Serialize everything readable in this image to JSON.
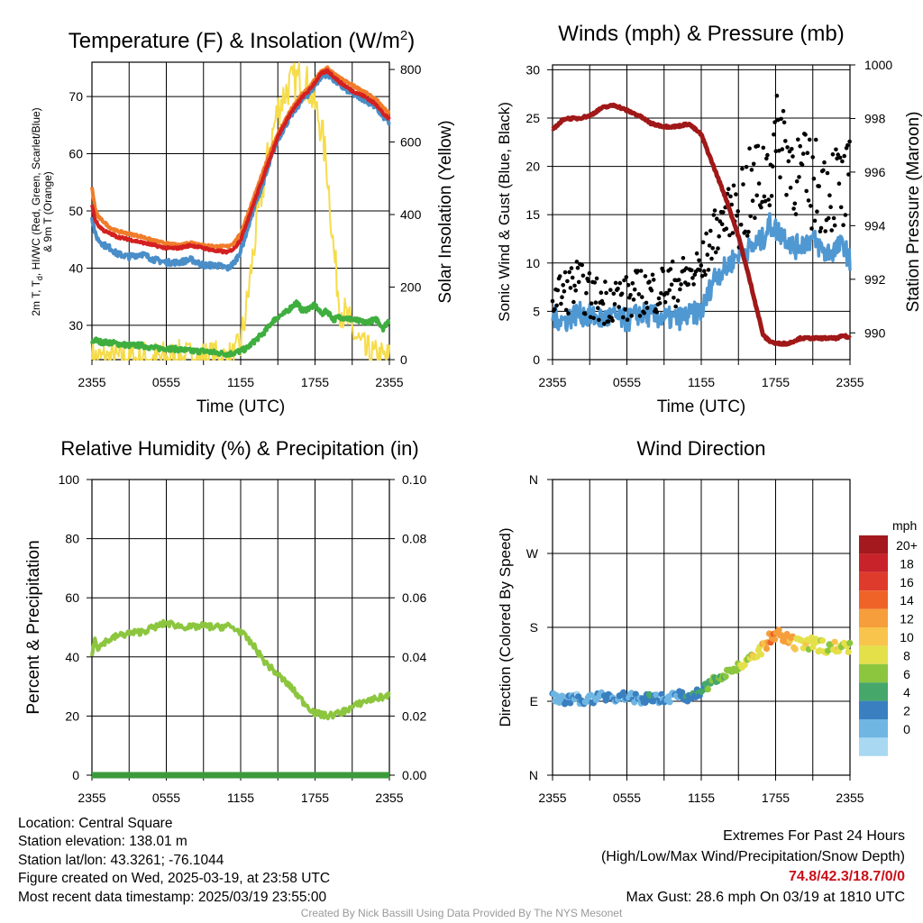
{
  "colors": {
    "temp_red": "#d42020",
    "heat_green": "#3fae3f",
    "dew_scarlet_blue": "#4a8ec8",
    "temp9m_orange": "#f07c2a",
    "solar_yellow": "#f6dc4a",
    "wind_blue": "#5098d2",
    "gust_black": "#000000",
    "pressure_maroon": "#a01818",
    "rh_green": "#8cc63f",
    "precip_green": "#3c9a3c",
    "extreme_red": "#c8101a"
  },
  "chart_data": [
    {
      "id": "temperature",
      "type": "line",
      "title": "Temperature (F) & Insolation (W/m²)",
      "xlabel": "Time (UTC)",
      "ylabel": "2m T, Td, HI/WC (Red, Green, Scarlet/Blue) & 9m T (Orange)",
      "y2label": "Solar Insolation (Yellow)",
      "x_ticks": [
        "2355",
        "0555",
        "1155",
        "1755",
        "2355"
      ],
      "x_range_hours": [
        0,
        24
      ],
      "ylim": [
        24,
        76
      ],
      "y_ticks": [
        30,
        40,
        50,
        60,
        70
      ],
      "y2lim": [
        0,
        820
      ],
      "y2_ticks": [
        0,
        200,
        400,
        600,
        800
      ],
      "grid": true,
      "x_hours": [
        0,
        0.25,
        0.5,
        1,
        1.5,
        2,
        3,
        4,
        5,
        6,
        7,
        8,
        9,
        10,
        11,
        11.5,
        12,
        12.5,
        13,
        13.5,
        14,
        14.5,
        15,
        15.5,
        16,
        16.5,
        17,
        17.5,
        18,
        18.5,
        19,
        19.5,
        20,
        21,
        22,
        23,
        23.5,
        24
      ],
      "series": [
        {
          "name": "2m T",
          "color_key": "temp_red",
          "values": [
            51,
            48.5,
            47.5,
            46.5,
            46,
            45.5,
            45,
            44.5,
            44,
            43.5,
            43.5,
            44,
            43.5,
            43,
            42.8,
            43.5,
            45,
            48,
            51,
            54,
            57,
            60,
            63,
            65,
            67,
            68.5,
            70,
            71,
            72.5,
            74,
            74.5,
            73.5,
            72.5,
            71,
            70,
            68.5,
            67,
            66
          ]
        },
        {
          "name": "9m T",
          "color_key": "temp9m_orange",
          "values": [
            54,
            50.5,
            49,
            48,
            47,
            46.5,
            46,
            45.5,
            44.8,
            44.3,
            44,
            44.5,
            44,
            43.8,
            43.8,
            44.5,
            46,
            49,
            52,
            55,
            58,
            61,
            63.5,
            65.5,
            67.5,
            69,
            70.5,
            71.5,
            73,
            74.3,
            75,
            74,
            73.2,
            72,
            70.8,
            69.3,
            68,
            67
          ]
        },
        {
          "name": "HI/WC",
          "color_key": "dew_scarlet_blue",
          "values": [
            49,
            46,
            45,
            44,
            43.5,
            42.5,
            42,
            42.5,
            41.5,
            41,
            41,
            41.5,
            40.5,
            40.5,
            40,
            41,
            43,
            46.5,
            50,
            53,
            56,
            59.5,
            62.5,
            64.5,
            66.5,
            68,
            69.5,
            70.5,
            72,
            73.5,
            74,
            73,
            72,
            70.5,
            69.5,
            68,
            66.5,
            65.5
          ]
        },
        {
          "name": "2m Td",
          "color_key": "heat_green",
          "values": [
            27,
            27.5,
            27.2,
            27,
            27,
            26.8,
            26.5,
            26.5,
            26,
            26,
            25.8,
            25.5,
            25.5,
            25.2,
            25,
            25.2,
            25.5,
            26,
            27,
            28,
            29,
            30.5,
            31.5,
            32,
            33,
            34,
            32.5,
            33,
            33.5,
            32,
            32.5,
            31,
            31.5,
            31,
            30.5,
            31,
            29.5,
            31
          ]
        },
        {
          "name": "Solar",
          "axis": "y2",
          "color_key": "solar_yellow",
          "values": [
            0,
            0,
            0,
            0,
            0,
            0,
            0,
            0,
            0,
            0,
            0,
            0,
            0,
            0,
            0,
            0,
            40,
            150,
            290,
            420,
            520,
            610,
            690,
            730,
            760,
            770,
            780,
            750,
            700,
            640,
            520,
            300,
            150,
            80,
            20,
            0,
            0,
            0
          ]
        }
      ]
    },
    {
      "id": "winds",
      "type": "line",
      "title": "Winds (mph) & Pressure (mb)",
      "xlabel": "Time (UTC)",
      "ylabel": "Sonic Wind & Gust (Blue, Black)",
      "y2label": "Station Pressure (Maroon)",
      "x_ticks": [
        "2355",
        "0555",
        "1155",
        "1755",
        "2355"
      ],
      "x_range_hours": [
        0,
        24
      ],
      "ylim": [
        0,
        30.5
      ],
      "y_ticks": [
        0,
        5,
        10,
        15,
        20,
        25,
        30
      ],
      "y2lim": [
        989.0,
        1000.0
      ],
      "y2_ticks": [
        990,
        992,
        994,
        996,
        998,
        1000
      ],
      "grid": true,
      "x_hours": [
        0,
        1,
        2,
        3,
        4,
        5,
        6,
        7,
        8,
        9,
        10,
        11,
        12,
        12.5,
        13,
        14,
        15,
        16,
        17,
        17.5,
        18,
        18.5,
        19,
        19.5,
        20,
        21,
        22,
        23,
        23.5,
        24
      ],
      "series": [
        {
          "name": "Sonic Wind",
          "color_key": "wind_blue",
          "values": [
            4.5,
            4,
            4.8,
            4.5,
            4.2,
            4.5,
            4,
            4.8,
            4.5,
            4.3,
            4.2,
            4.6,
            5,
            6.5,
            8.5,
            9.5,
            11,
            11.5,
            12.5,
            14,
            13.5,
            13,
            12.5,
            11.5,
            12,
            12.5,
            11,
            11.5,
            12,
            10
          ]
        },
        {
          "name": "Gust",
          "color_key": "gust_black",
          "values": [
            6.5,
            7,
            8,
            6.5,
            6,
            6.5,
            6.2,
            7,
            7,
            7.5,
            8,
            8.5,
            9.5,
            11,
            13,
            15,
            16,
            17,
            19,
            20,
            22,
            24,
            21,
            20,
            19,
            18,
            18,
            18,
            17,
            18
          ]
        },
        {
          "name": "Pressure",
          "axis": "y2",
          "color_key": "pressure_maroon",
          "values": [
            997.6,
            998.0,
            998.0,
            998.1,
            998.4,
            998.5,
            998.3,
            998.1,
            997.8,
            997.7,
            997.7,
            997.8,
            997.4,
            996.8,
            996.2,
            995.0,
            993.6,
            991.8,
            989.9,
            989.7,
            989.6,
            989.6,
            989.6,
            989.7,
            989.8,
            989.8,
            989.8,
            989.8,
            989.9,
            989.8
          ]
        }
      ]
    },
    {
      "id": "humidity",
      "type": "line",
      "title": "Relative Humidity (%) & Precipitation (in)",
      "xlabel": "",
      "ylabel": "Percent & Precipitation",
      "x_ticks": [
        "2355",
        "0555",
        "1155",
        "1755",
        "2355"
      ],
      "x_range_hours": [
        0,
        24
      ],
      "ylim": [
        0,
        100
      ],
      "y_ticks": [
        0,
        20,
        40,
        60,
        80,
        100
      ],
      "y2lim": [
        0,
        0.1
      ],
      "y2_ticks": [
        "0.00",
        "0.02",
        "0.04",
        "0.06",
        "0.08",
        "0.10"
      ],
      "grid": true,
      "x_hours": [
        0,
        0.2,
        0.5,
        1,
        2,
        3,
        4,
        5,
        6,
        7,
        8,
        9,
        10,
        11,
        12,
        13,
        14,
        15,
        16,
        17,
        18,
        19,
        20,
        21,
        22,
        23,
        24
      ],
      "series": [
        {
          "name": "RH",
          "color_key": "rh_green",
          "values": [
            40,
            47,
            43,
            45,
            47,
            48,
            48.5,
            50,
            51.5,
            50.5,
            50,
            50.5,
            50,
            50.5,
            48.5,
            44,
            38,
            34,
            30,
            25,
            21,
            20,
            21,
            23,
            25,
            26,
            27
          ]
        },
        {
          "name": "Precipitation",
          "axis": "y2",
          "color_key": "precip_green",
          "values": [
            0,
            0,
            0,
            0,
            0,
            0,
            0,
            0,
            0,
            0,
            0,
            0,
            0,
            0,
            0,
            0,
            0,
            0,
            0,
            0,
            0,
            0,
            0,
            0,
            0,
            0,
            0
          ]
        }
      ]
    },
    {
      "id": "direction",
      "type": "scatter",
      "title": "Wind Direction",
      "xlabel": "",
      "ylabel": "Direction (Colored By Speed)",
      "x_ticks": [
        "2355",
        "0555",
        "1155",
        "1755",
        "2355"
      ],
      "x_range_hours": [
        0,
        24
      ],
      "y_ticks": [
        "N",
        "E",
        "S",
        "W",
        "N"
      ],
      "ylim_deg": [
        0,
        360
      ],
      "grid": true,
      "x_hours": [
        0,
        1,
        2,
        3,
        4,
        5,
        6,
        7,
        8,
        9,
        10,
        11,
        12,
        12.5,
        13,
        14,
        15,
        16,
        17,
        17.5,
        18,
        18.5,
        19,
        19.5,
        20,
        21,
        22,
        23,
        24
      ],
      "series": [
        {
          "name": "Direction",
          "values": [
            95,
            90,
            93,
            92,
            97,
            94,
            96,
            92,
            95,
            93,
            97,
            96,
            100,
            108,
            118,
            125,
            132,
            140,
            155,
            165,
            170,
            168,
            163,
            160,
            158,
            160,
            157,
            155,
            158
          ]
        },
        {
          "name": "Speed",
          "values": [
            4,
            4,
            3,
            4,
            4,
            5,
            4,
            4,
            5,
            4,
            4,
            5,
            6,
            7,
            8,
            9,
            10,
            11,
            13,
            15,
            16,
            15,
            14,
            13,
            12,
            11,
            10,
            11,
            10
          ]
        }
      ],
      "colorbar": {
        "title": "mph",
        "labels": [
          "20+",
          "18",
          "16",
          "14",
          "12",
          "10",
          "8",
          "6",
          "4",
          "2",
          "0"
        ],
        "colors": [
          "#a3191e",
          "#c8232a",
          "#df3b2c",
          "#ef6328",
          "#f59e3b",
          "#f8c44c",
          "#e4e04a",
          "#8cc63f",
          "#46a76a",
          "#3a7fc0",
          "#6fb6e2",
          "#a9d8f2"
        ]
      }
    }
  ],
  "footer": {
    "location": "Location: Central Square",
    "elevation": "Station elevation: 138.01 m",
    "latlon": "Station lat/lon: 43.3261; -76.1044",
    "created": "Figure created on Wed, 2025-03-19, at 23:58 UTC",
    "recent": "Most recent data timestamp: 2025/03/19 23:55:00",
    "extremes_title": "Extremes For Past 24 Hours",
    "extremes_desc": "(High/Low/Max Wind/Precipitation/Snow Depth)",
    "extremes_values": "74.8/42.3/18.7/0/0",
    "max_gust": "Max Gust: 28.6 mph On 03/19 at 1810 UTC",
    "credit": "Created By Nick Bassill Using Data Provided By The NYS Mesonet"
  }
}
